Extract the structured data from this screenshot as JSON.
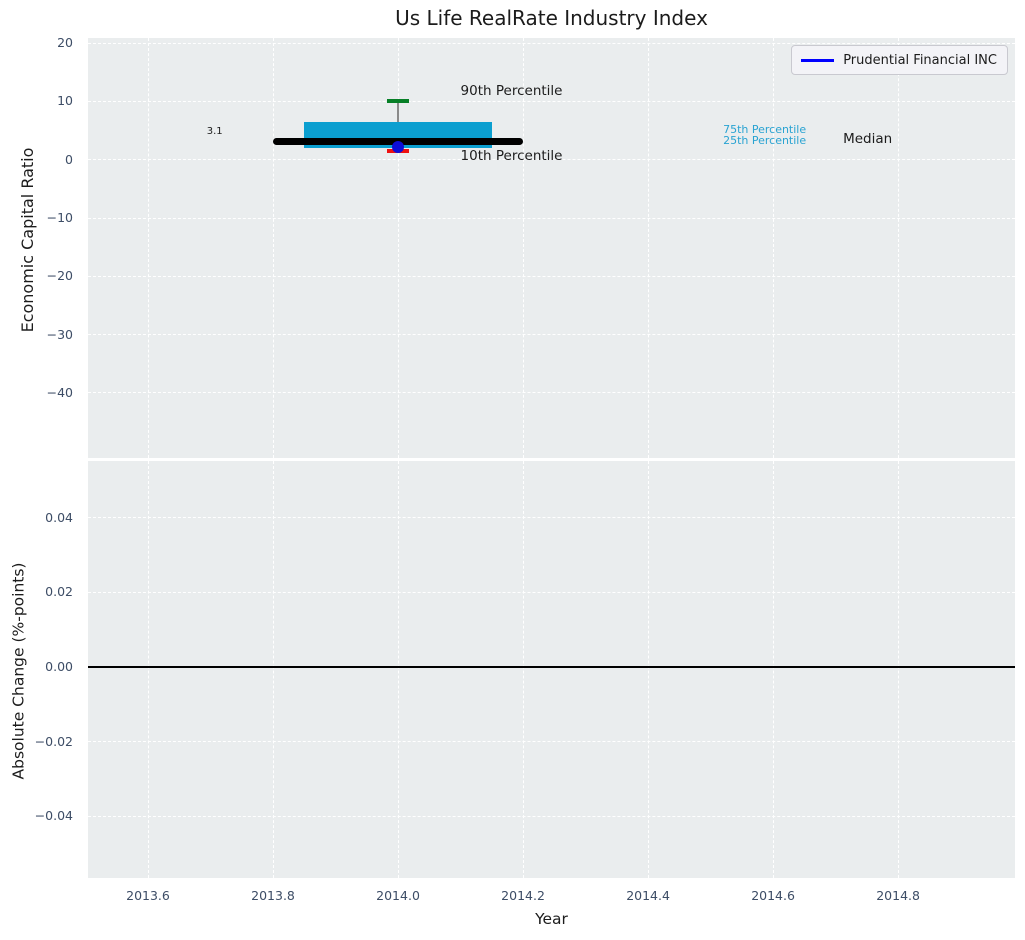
{
  "title": "Us Life RealRate Industry Index",
  "x_axis": {
    "label": "Year",
    "ticks": [
      2013.6,
      2013.8,
      2014.0,
      2014.2,
      2014.4,
      2014.6,
      2014.8
    ],
    "tick_labels": [
      "2013.6",
      "2013.8",
      "2014.0",
      "2014.2",
      "2014.4",
      "2014.6",
      "2014.8"
    ],
    "xlim": [
      2013.504,
      2014.987
    ]
  },
  "colors": {
    "plot_bg": "#eaedee",
    "grid": "#ffffff",
    "tick_label": "#3d4d66",
    "text": "#1c1c1c",
    "legend_bg": "#f3f3f7",
    "legend_border": "#c9c9d0"
  },
  "chart_data": [
    {
      "type": "boxplot",
      "title": "Us Life RealRate Industry Index",
      "ylabel": "Economic Capital Ratio",
      "ylim": [
        20.9,
        -51.2
      ],
      "yticks": [
        20,
        10,
        0,
        -10,
        -20,
        -30,
        -40
      ],
      "ytick_labels": [
        "20",
        "10",
        "0",
        "−10",
        "−20",
        "−30",
        "−40"
      ],
      "grid": true,
      "legend": {
        "position": "upper right",
        "entries": [
          {
            "label": "Prudential Financial INC",
            "color": "#0000ff"
          }
        ]
      },
      "box": {
        "x": 2014.0,
        "p90": 10.0,
        "p75": 6.5,
        "median": 3.1,
        "p25": 2.0,
        "p10": 1.5,
        "median_label": "3.1",
        "box_x_range": [
          2013.85,
          2014.15
        ],
        "median_x_range": [
          2013.8,
          2014.2
        ],
        "cap_half_width": 0.018,
        "colors": {
          "box": "#0b9fd0",
          "median": "#000000",
          "p90_cap": "#078027",
          "p10_cap": "#ee1010",
          "whisker": "#8a8a8a"
        }
      },
      "company_point": {
        "label": "Prudential Financial INC",
        "x": 2014.0,
        "y": 2.2,
        "color": "#0d0dd8"
      },
      "annotations": [
        {
          "text": "90th Percentile",
          "x": 2014.1,
          "y": 13.0,
          "color": "#1c1c1c",
          "size": 13.5
        },
        {
          "text": "10th Percentile",
          "x": 2014.1,
          "y": 1.85,
          "color": "#1c1c1c",
          "size": 13.5
        },
        {
          "text": "3.1",
          "x": 2013.694,
          "y": 5.8,
          "color": "#1c1c1c",
          "size": 10
        },
        {
          "text": "75th Percentile",
          "x": 2014.52,
          "y": 6.15,
          "color": "#29a3d2",
          "size": 11
        },
        {
          "text": "25th Percentile",
          "x": 2014.52,
          "y": 4.25,
          "color": "#29a3d2",
          "size": 11
        },
        {
          "text": "Median",
          "x": 2014.712,
          "y": 4.75,
          "color": "#1c1c1c",
          "size": 13.5
        }
      ]
    },
    {
      "type": "line",
      "ylabel": "Absolute Change (%-points)",
      "ylim": [
        0.0552,
        -0.0565
      ],
      "yticks": [
        0.04,
        0.02,
        0.0,
        -0.02,
        -0.04
      ],
      "ytick_labels": [
        "0.04",
        "0.02",
        "0.00",
        "−0.02",
        "−0.04"
      ],
      "grid": true,
      "zero_line": {
        "y": 0.0,
        "color": "#000000",
        "width": 2
      }
    }
  ]
}
